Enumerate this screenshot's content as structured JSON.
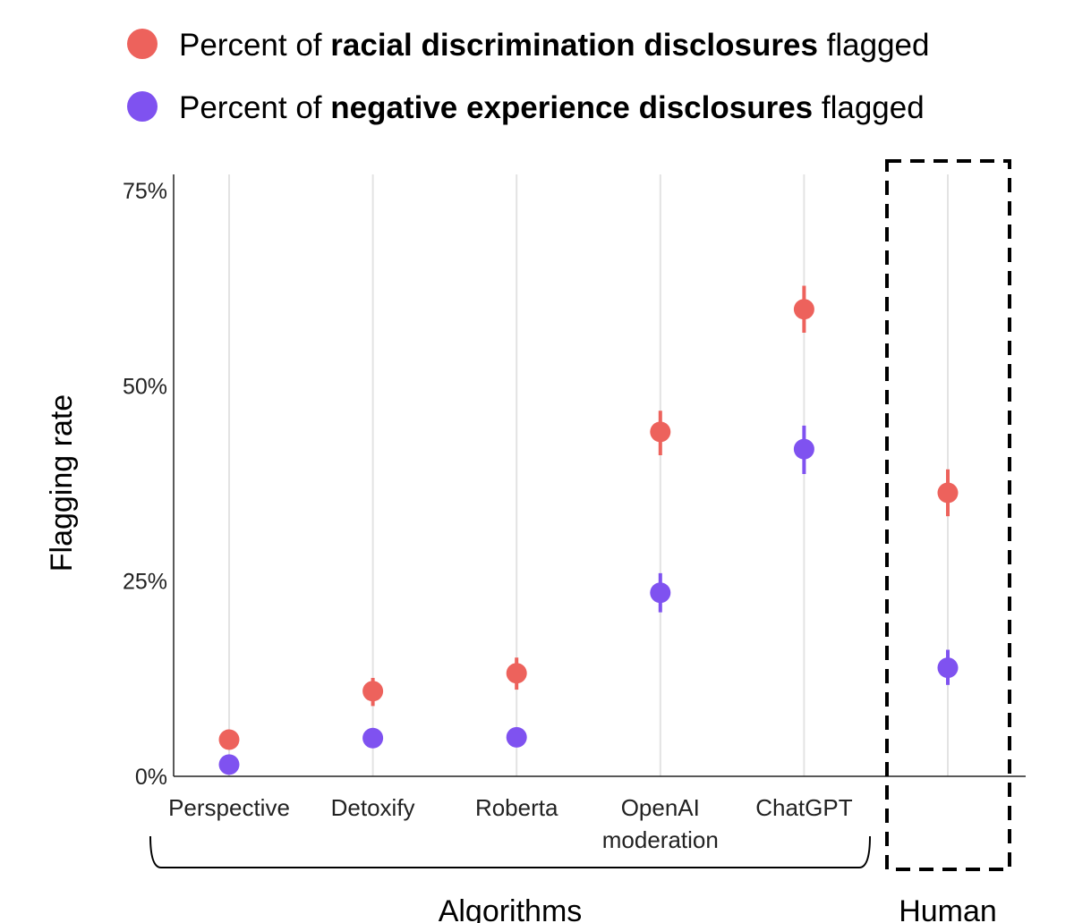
{
  "chart_data": {
    "type": "scatter",
    "ylabel": "Flagging rate",
    "ylim": [
      0,
      75
    ],
    "yticks": [
      0,
      25,
      50,
      75
    ],
    "ytick_labels": [
      "0%",
      "25%",
      "50%",
      "75%"
    ],
    "categories": [
      [
        "Perspective"
      ],
      [
        "Detoxify"
      ],
      [
        "Roberta"
      ],
      [
        "OpenAI",
        "moderation"
      ],
      [
        "ChatGPT"
      ],
      [
        ""
      ]
    ],
    "groups": [
      {
        "label": "Algorithms",
        "categories": [
          0,
          1,
          2,
          3,
          4
        ]
      },
      {
        "label": "Human",
        "categories": [
          5
        ],
        "highlighted": true
      }
    ],
    "legend": {
      "placement": "top",
      "entries": [
        {
          "pre": "Percent of ",
          "bold": "racial discrimination disclosures",
          "post": " flagged"
        },
        {
          "pre": "Percent of ",
          "bold": "negative experience disclosures",
          "post": " flagged"
        }
      ]
    },
    "grid": "vertical",
    "series": [
      {
        "name": "Percent of racial discrimination disclosures flagged",
        "color": "#ED625C",
        "values": [
          4.7,
          10.9,
          13.2,
          44.1,
          59.8,
          36.3
        ],
        "err_low": [
          null,
          9.0,
          11.1,
          41.1,
          56.8,
          33.3
        ],
        "err_high": [
          null,
          12.6,
          15.2,
          46.8,
          62.8,
          39.3
        ]
      },
      {
        "name": "Percent of negative experience disclosures flagged",
        "color": "#7F52F0",
        "values": [
          1.5,
          4.9,
          5.0,
          23.5,
          41.9,
          13.9
        ],
        "err_low": [
          null,
          null,
          null,
          21.0,
          38.7,
          11.7
        ],
        "err_high": [
          null,
          null,
          null,
          26.0,
          44.9,
          16.2
        ]
      }
    ]
  }
}
